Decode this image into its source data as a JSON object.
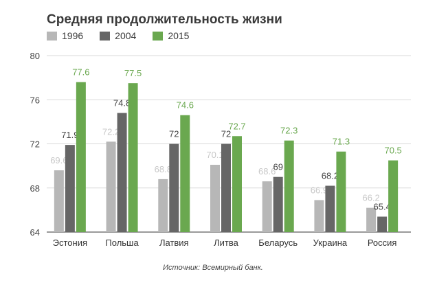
{
  "chart_data": {
    "type": "bar",
    "title": "Средняя продолжительность жизни",
    "categories": [
      "Эстония",
      "Польша",
      "Латвия",
      "Литва",
      "Беларусь",
      "Украина",
      "Россия"
    ],
    "series": [
      {
        "name": "1996",
        "color": "#b7b7b7",
        "label_color": "#c8c8c8",
        "values": [
          69.6,
          72.2,
          68.8,
          70.1,
          68.6,
          66.9,
          66.2
        ],
        "labels": [
          "69.6",
          "72.2",
          "68.8",
          "70.1",
          "68.6",
          "66.9",
          "66.2"
        ]
      },
      {
        "name": "2004",
        "color": "#666666",
        "label_color": "#444444",
        "values": [
          71.9,
          74.8,
          72,
          72,
          69,
          68.2,
          65.4
        ],
        "labels": [
          "71.9",
          "74.8",
          "72",
          "72",
          "69",
          "68.2",
          "65.4"
        ]
      },
      {
        "name": "2015",
        "color": "#6aa84f",
        "label_color": "#6aa84f",
        "values": [
          77.6,
          77.5,
          74.6,
          72.7,
          72.3,
          71.3,
          70.5
        ],
        "labels": [
          "77.6",
          "77.5",
          "74.6",
          "72.7",
          "72.3",
          "71.3",
          "70.5"
        ]
      }
    ],
    "ylim": [
      64,
      80
    ],
    "yticks": [
      "64",
      "68",
      "72",
      "76",
      "80"
    ],
    "grid": true,
    "legend": "top-left",
    "xlabel": "",
    "ylabel": ""
  },
  "source": "Источник: Всемирный банк."
}
